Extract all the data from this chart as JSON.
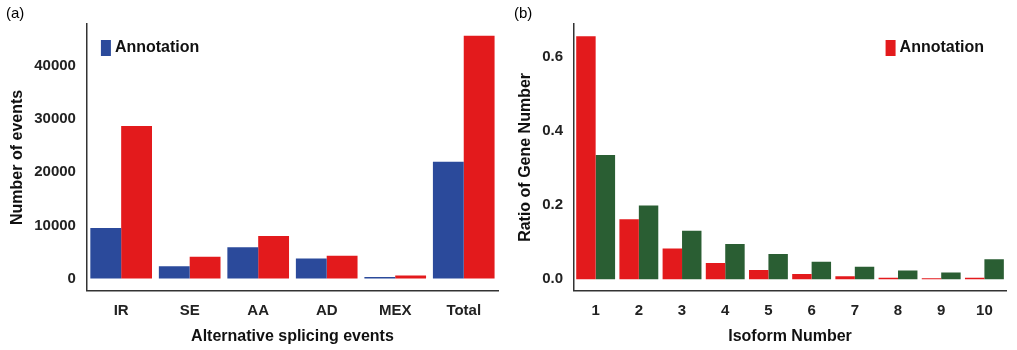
{
  "chart_data": [
    {
      "type": "bar",
      "annotations": [
        "(a)"
      ],
      "xlabel": "Alternative splicing events",
      "ylabel": "Number of events",
      "categories": [
        "IR",
        "SE",
        "AA",
        "AD",
        "MEX",
        "Total"
      ],
      "series": [
        {
          "name": "Annotation",
          "color": "#2b4a9b",
          "values": [
            9500,
            2300,
            5900,
            3800,
            300,
            22000
          ]
        },
        {
          "color": "#e31a1c",
          "values": [
            28700,
            4100,
            8000,
            4300,
            600,
            45700
          ]
        }
      ],
      "ylim": [
        -2300,
        47900
      ],
      "yticks": [
        0,
        10000,
        20000,
        30000,
        40000
      ],
      "grid": false,
      "legend": "top left"
    },
    {
      "type": "bar",
      "annotations": [
        "(b)"
      ],
      "xlabel": "Isoform Number",
      "ylabel": "Ratio of Gene Number",
      "categories": [
        "1",
        "2",
        "3",
        "4",
        "5",
        "6",
        "7",
        "8",
        "9",
        "10"
      ],
      "series": [
        {
          "name": "Annotation",
          "color": "#e31a1c",
          "values": [
            0.655,
            0.162,
            0.083,
            0.044,
            0.025,
            0.014,
            0.008,
            0.004,
            0.003,
            0.004
          ]
        },
        {
          "color": "#2a5e33",
          "values": [
            0.335,
            0.199,
            0.131,
            0.095,
            0.068,
            0.047,
            0.034,
            0.024,
            0.018,
            0.054
          ]
        }
      ],
      "ylim": [
        -0.031,
        0.688
      ],
      "yticks": [
        {
          "value": 0,
          "label": "0.0"
        },
        {
          "value": 0.2,
          "label": "0.2"
        },
        {
          "value": 0.4,
          "label": "0.4"
        },
        {
          "value": 0.6,
          "label": "0.6"
        }
      ],
      "grid": false,
      "legend": "top right"
    }
  ]
}
